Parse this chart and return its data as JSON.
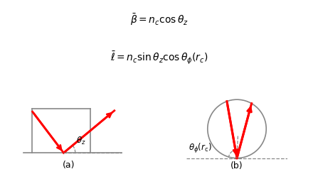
{
  "formula1": "$\\bar{\\beta} = n_c \\cos\\theta_z$",
  "formula2": "$\\bar{\\ell} = n_c \\sin\\theta_z \\cos\\theta_{\\phi}(r_c)$",
  "label_a": "(a)",
  "label_b": "(b)",
  "theta_z_label": "$\\theta_z$",
  "theta_phi_label": "$\\theta_{\\phi}(r_{\\mathrm{c}})$",
  "ray_color": "red",
  "box_color": "#888888",
  "dashed_color": "#888888",
  "circle_color": "#888888",
  "bg_color": "white",
  "formula_color": "#888888",
  "formula_fontsize": 10
}
